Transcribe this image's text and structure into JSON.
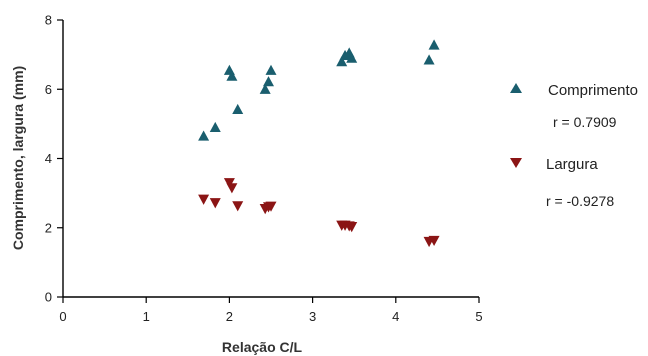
{
  "chart_data": {
    "type": "scatter",
    "xlabel": "Relação C/L",
    "ylabel": "Comprimento, largura (mm)",
    "xlim": [
      0,
      5
    ],
    "ylim": [
      0,
      8
    ],
    "x_ticks": [
      "0",
      "1",
      "2",
      "3",
      "4",
      "5"
    ],
    "y_ticks": [
      "0",
      "2",
      "4",
      "6",
      "8"
    ],
    "grid": false,
    "legend_position": "right",
    "series": [
      {
        "name": "Comprimento",
        "marker": "triangle-up",
        "color": "#1a5e6e",
        "r_label": "r = 0.7909",
        "points": [
          {
            "x": 1.69,
            "y": 4.65
          },
          {
            "x": 1.83,
            "y": 4.9
          },
          {
            "x": 2.0,
            "y": 6.55
          },
          {
            "x": 2.03,
            "y": 6.38
          },
          {
            "x": 2.1,
            "y": 5.42
          },
          {
            "x": 2.43,
            "y": 6.0
          },
          {
            "x": 2.47,
            "y": 6.22
          },
          {
            "x": 2.5,
            "y": 6.55
          },
          {
            "x": 3.35,
            "y": 6.8
          },
          {
            "x": 3.39,
            "y": 6.98
          },
          {
            "x": 3.44,
            "y": 7.05
          },
          {
            "x": 3.47,
            "y": 6.9
          },
          {
            "x": 4.4,
            "y": 6.85
          },
          {
            "x": 4.46,
            "y": 7.28
          }
        ]
      },
      {
        "name": "Largura",
        "marker": "triangle-down",
        "color": "#8b1515",
        "r_label": "r = -0.9278",
        "points": [
          {
            "x": 1.69,
            "y": 2.82
          },
          {
            "x": 1.83,
            "y": 2.72
          },
          {
            "x": 2.0,
            "y": 3.3
          },
          {
            "x": 2.03,
            "y": 3.15
          },
          {
            "x": 2.1,
            "y": 2.63
          },
          {
            "x": 2.43,
            "y": 2.55
          },
          {
            "x": 2.47,
            "y": 2.6
          },
          {
            "x": 2.5,
            "y": 2.62
          },
          {
            "x": 3.35,
            "y": 2.07
          },
          {
            "x": 3.39,
            "y": 2.07
          },
          {
            "x": 3.44,
            "y": 2.05
          },
          {
            "x": 3.47,
            "y": 2.03
          },
          {
            "x": 4.4,
            "y": 1.6
          },
          {
            "x": 4.46,
            "y": 1.63
          }
        ]
      }
    ]
  }
}
